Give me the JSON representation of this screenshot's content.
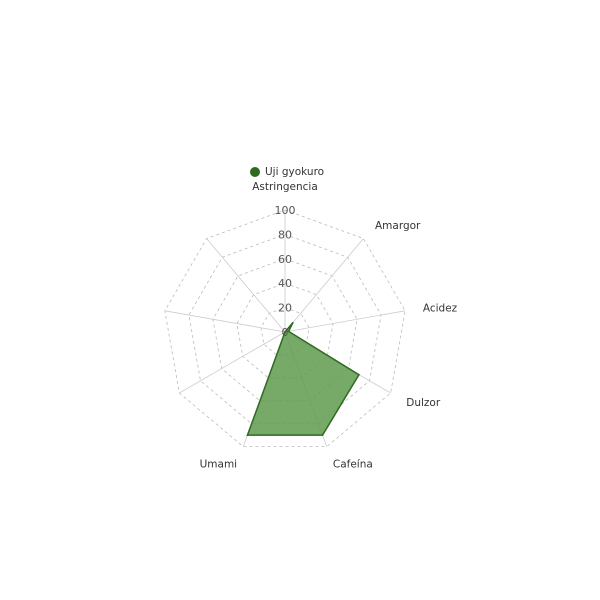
{
  "chart_data": {
    "type": "radar",
    "axes": [
      "Astringencia",
      "Amargor",
      "Acidez",
      "Dulzor",
      "Cafeína",
      "Umami",
      "",
      "",
      ""
    ],
    "series": [
      {
        "name": "Uji gyokuro",
        "values": [
          0,
          10,
          3,
          70,
          90,
          90,
          0,
          0,
          0
        ],
        "color": "#2e6b1f",
        "fill": "#5f9a4f"
      }
    ],
    "rlim": [
      0,
      100
    ],
    "ticks": [
      "0",
      "20",
      "40",
      "60",
      "80",
      "100"
    ],
    "grid": true,
    "legend": "top"
  }
}
